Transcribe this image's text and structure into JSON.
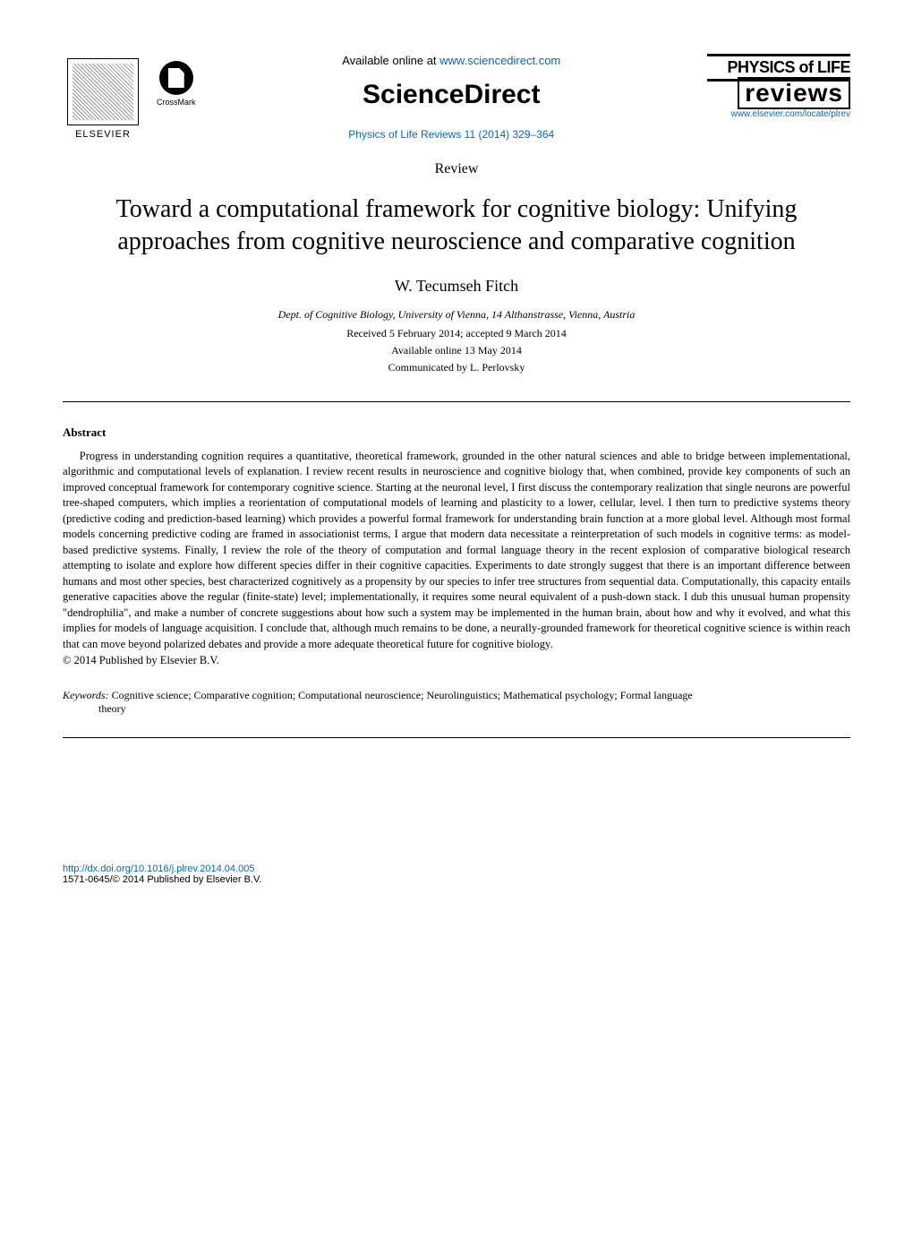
{
  "header": {
    "available_online_prefix": "Available online at ",
    "available_online_url": "www.sciencedirect.com",
    "sciencedirect_label": "ScienceDirect",
    "journal_ref": "Physics of Life Reviews 11 (2014) 329–364",
    "elsevier_label": "ELSEVIER",
    "crossmark_label": "CrossMark",
    "journal_title_top": "PHYSICS of LIFE",
    "journal_title_bottom": "reviews",
    "journal_url": "www.elsevier.com/locate/plrev"
  },
  "article": {
    "type_label": "Review",
    "title": "Toward a computational framework for cognitive biology: Unifying approaches from cognitive neuroscience and comparative cognition",
    "author": "W. Tecumseh Fitch",
    "affiliation": "Dept. of Cognitive Biology, University of Vienna, 14 Althanstrasse, Vienna, Austria",
    "received_accepted": "Received 5 February 2014; accepted 9 March 2014",
    "available_online": "Available online 13 May 2014",
    "communicated_by": "Communicated by L. Perlovsky"
  },
  "abstract": {
    "heading": "Abstract",
    "text": "Progress in understanding cognition requires a quantitative, theoretical framework, grounded in the other natural sciences and able to bridge between implementational, algorithmic and computational levels of explanation. I review recent results in neuroscience and cognitive biology that, when combined, provide key components of such an improved conceptual framework for contemporary cognitive science. Starting at the neuronal level, I first discuss the contemporary realization that single neurons are powerful tree-shaped computers, which implies a reorientation of computational models of learning and plasticity to a lower, cellular, level. I then turn to predictive systems theory (predictive coding and prediction-based learning) which provides a powerful formal framework for understanding brain function at a more global level. Although most formal models concerning predictive coding are framed in associationist terms, I argue that modern data necessitate a reinterpretation of such models in cognitive terms: as model-based predictive systems. Finally, I review the role of the theory of computation and formal language theory in the recent explosion of comparative biological research attempting to isolate and explore how different species differ in their cognitive capacities. Experiments to date strongly suggest that there is an important difference between humans and most other species, best characterized cognitively as a propensity by our species to infer tree structures from sequential data. Computationally, this capacity entails generative capacities above the regular (finite-state) level; implementationally, it requires some neural equivalent of a push-down stack. I dub this unusual human propensity \"dendrophilia\", and make a number of concrete suggestions about how such a system may be implemented in the human brain, about how and why it evolved, and what this implies for models of language acquisition. I conclude that, although much remains to be done, a neurally-grounded framework for theoretical cognitive science is within reach that can move beyond polarized debates and provide a more adequate theoretical future for cognitive biology.",
    "copyright": "© 2014 Published by Elsevier B.V."
  },
  "keywords": {
    "label": "Keywords: ",
    "text": "Cognitive science; Comparative cognition; Computational neuroscience; Neurolinguistics; Mathematical psychology; Formal language",
    "continuation": "theory"
  },
  "footer": {
    "doi": "http://dx.doi.org/10.1016/j.plrev.2014.04.005",
    "issn_copyright": "1571-0645/© 2014 Published by Elsevier B.V."
  },
  "colors": {
    "link": "#0066cc",
    "text": "#000000",
    "background": "#ffffff"
  }
}
